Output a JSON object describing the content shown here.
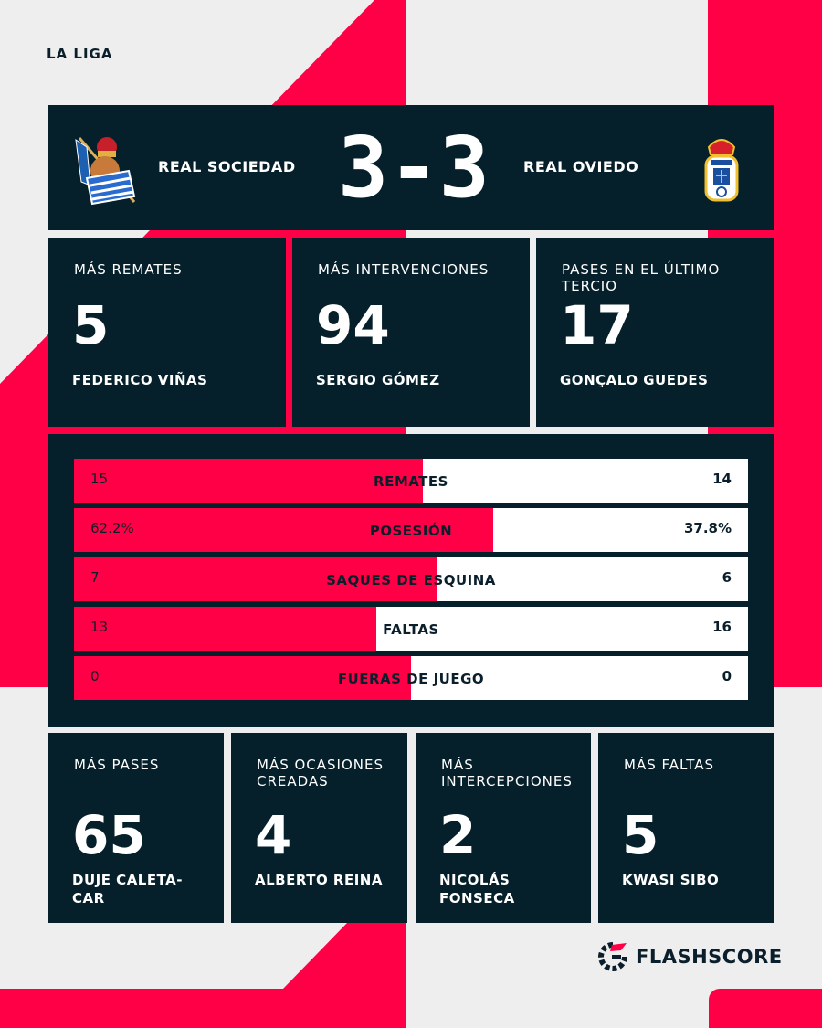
{
  "colors": {
    "accent": "#ff0046",
    "panel": "#05202b",
    "background": "#eeeeee"
  },
  "league": "LA LIGA",
  "match": {
    "home": "REAL SOCIEDAD",
    "away": "REAL OVIEDO",
    "score": "3-3",
    "home_crest": "real-sociedad-crest",
    "away_crest": "real-oviedo-crest"
  },
  "top_leaders": [
    {
      "label": "MÁS REMATES",
      "value": "5",
      "player": "FEDERICO VIÑAS"
    },
    {
      "label": "MÁS INTERVENCIONES",
      "value": "94",
      "player": "SERGIO GÓMEZ"
    },
    {
      "label": "PASES EN EL ÚLTIMO TERCIO",
      "value": "17",
      "player": "GONÇALO GUEDES"
    }
  ],
  "stats": [
    {
      "label": "REMATES",
      "home": "15",
      "away": "14",
      "home_share": 51.7
    },
    {
      "label": "POSESIÓN",
      "home": "62.2%",
      "away": "37.8%",
      "home_share": 62.2
    },
    {
      "label": "SAQUES DE ESQUINA",
      "home": "7",
      "away": "6",
      "home_share": 53.8
    },
    {
      "label": "FALTAS",
      "home": "13",
      "away": "16",
      "home_share": 44.8
    },
    {
      "label": "FUERAS DE JUEGO",
      "home": "0",
      "away": "0",
      "home_share": 50
    }
  ],
  "bottom_leaders": [
    {
      "label": "MÁS PASES",
      "value": "65",
      "player": "DUJE CALETA-CAR"
    },
    {
      "label": "MÁS OCASIONES CREADAS",
      "value": "4",
      "player": "ALBERTO REINA"
    },
    {
      "label": "MÁS INTERCEPCIONES",
      "value": "2",
      "player": "NICOLÁS FONSECA"
    },
    {
      "label": "MÁS FALTAS",
      "value": "5",
      "player": "KWASI SIBO"
    }
  ],
  "brand": "FLASHSCORE"
}
